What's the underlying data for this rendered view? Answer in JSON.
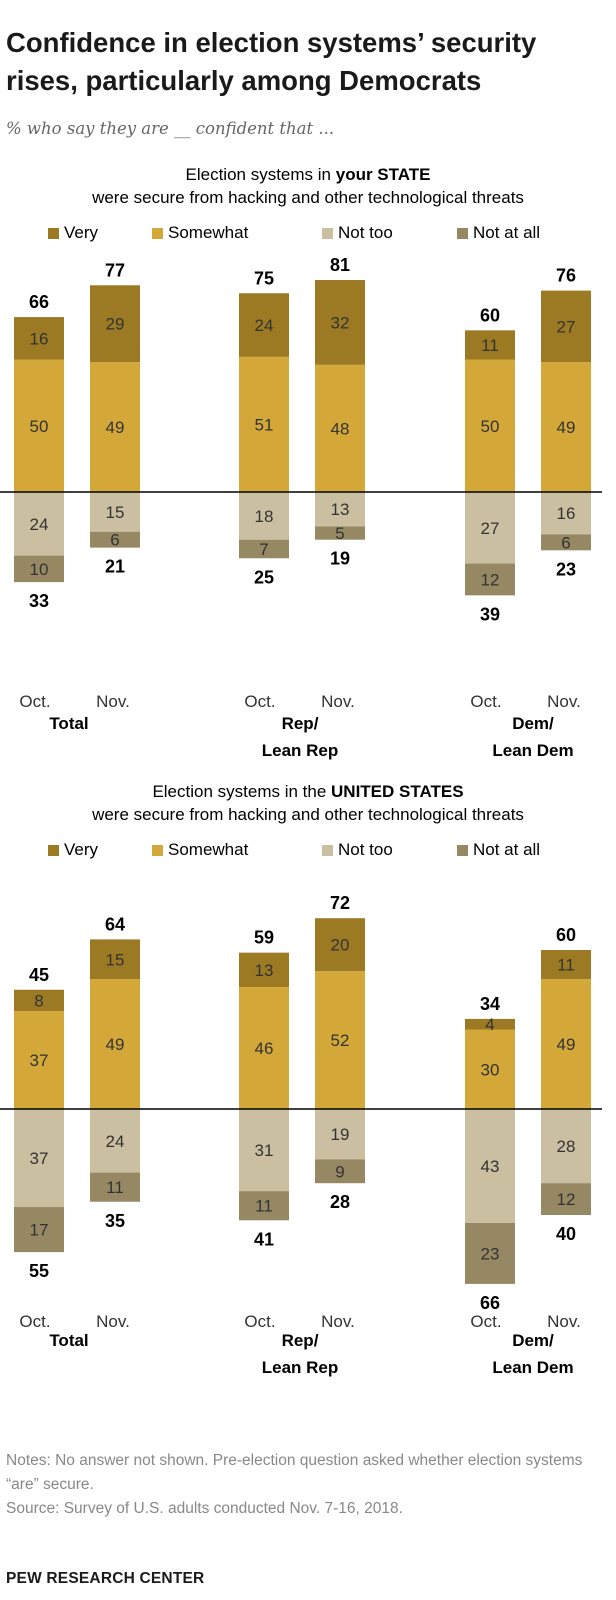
{
  "title": "Confidence in election systems’ security rises, particularly among Democrats",
  "subtitle": "% who say they are __ confident that ...",
  "colors": {
    "very": "#9C7A24",
    "somewhat": "#D4A838",
    "not_too": "#CABFA0",
    "not_at_all": "#958863"
  },
  "legend": [
    {
      "key": "very",
      "label": "Very"
    },
    {
      "key": "somewhat",
      "label": "Somewhat"
    },
    {
      "key": "not_too",
      "label": "Not too"
    },
    {
      "key": "not_at_all",
      "label": "Not at all"
    }
  ],
  "panels": [
    {
      "title_pre": "Election systems in ",
      "title_bold": "your STATE",
      "title_post": " were secure from hacking and other technological threats"
    },
    {
      "title_pre": "Election systems in the ",
      "title_bold": "UNITED STATES",
      "title_post": " were secure from hacking and other technological threats"
    }
  ],
  "notes": [
    "Notes: No answer not shown. Pre-election question asked whether election systems “are” secure.",
    "Source: Survey of U.S. adults conducted Nov. 7-16, 2018."
  ],
  "footer": "PEW RESEARCH CENTER",
  "chart_data": [
    {
      "type": "bar",
      "stacked": "diverging",
      "title": "Election systems in your STATE were secure from hacking and other technological threats",
      "group_labels": [
        [
          "Total"
        ],
        [
          "Rep/",
          "Lean Rep"
        ],
        [
          "Dem/",
          "Lean Dem"
        ]
      ],
      "categories": [
        "Oct.",
        "Nov."
      ],
      "groups": [
        {
          "name": "Total",
          "bars": [
            {
              "period": "Oct.",
              "very": 16,
              "somewhat": 50,
              "not_too": 24,
              "not_at_all": 10,
              "confident_total": 66,
              "not_confident_total": 33
            },
            {
              "period": "Nov.",
              "very": 29,
              "somewhat": 49,
              "not_too": 15,
              "not_at_all": 6,
              "confident_total": 77,
              "not_confident_total": 21
            }
          ]
        },
        {
          "name": "Rep/Lean Rep",
          "bars": [
            {
              "period": "Oct.",
              "very": 24,
              "somewhat": 51,
              "not_too": 18,
              "not_at_all": 7,
              "confident_total": 75,
              "not_confident_total": 25
            },
            {
              "period": "Nov.",
              "very": 32,
              "somewhat": 48,
              "not_too": 13,
              "not_at_all": 5,
              "confident_total": 81,
              "not_confident_total": 19
            }
          ]
        },
        {
          "name": "Dem/Lean Dem",
          "bars": [
            {
              "period": "Oct.",
              "very": 11,
              "somewhat": 50,
              "not_too": 27,
              "not_at_all": 12,
              "confident_total": 60,
              "not_confident_total": 39
            },
            {
              "period": "Nov.",
              "very": 27,
              "somewhat": 49,
              "not_too": 16,
              "not_at_all": 6,
              "confident_total": 76,
              "not_confident_total": 23
            }
          ]
        }
      ]
    },
    {
      "type": "bar",
      "stacked": "diverging",
      "title": "Election systems in the UNITED STATES were secure from hacking and other technological threats",
      "group_labels": [
        [
          "Total"
        ],
        [
          "Rep/",
          "Lean Rep"
        ],
        [
          "Dem/",
          "Lean Dem"
        ]
      ],
      "categories": [
        "Oct.",
        "Nov."
      ],
      "groups": [
        {
          "name": "Total",
          "bars": [
            {
              "period": "Oct.",
              "very": 8,
              "somewhat": 37,
              "not_too": 37,
              "not_at_all": 17,
              "confident_total": 45,
              "not_confident_total": 55
            },
            {
              "period": "Nov.",
              "very": 15,
              "somewhat": 49,
              "not_too": 24,
              "not_at_all": 11,
              "confident_total": 64,
              "not_confident_total": 35
            }
          ]
        },
        {
          "name": "Rep/Lean Rep",
          "bars": [
            {
              "period": "Oct.",
              "very": 13,
              "somewhat": 46,
              "not_too": 31,
              "not_at_all": 11,
              "confident_total": 59,
              "not_confident_total": 41
            },
            {
              "period": "Nov.",
              "very": 20,
              "somewhat": 52,
              "not_too": 19,
              "not_at_all": 9,
              "confident_total": 72,
              "not_confident_total": 28
            }
          ]
        },
        {
          "name": "Dem/Lean Dem",
          "bars": [
            {
              "period": "Oct.",
              "very": 4,
              "somewhat": 30,
              "not_too": 43,
              "not_at_all": 23,
              "confident_total": 34,
              "not_confident_total": 66
            },
            {
              "period": "Nov.",
              "very": 11,
              "somewhat": 49,
              "not_too": 28,
              "not_at_all": 12,
              "confident_total": 60,
              "not_confident_total": 40
            }
          ]
        }
      ]
    }
  ]
}
